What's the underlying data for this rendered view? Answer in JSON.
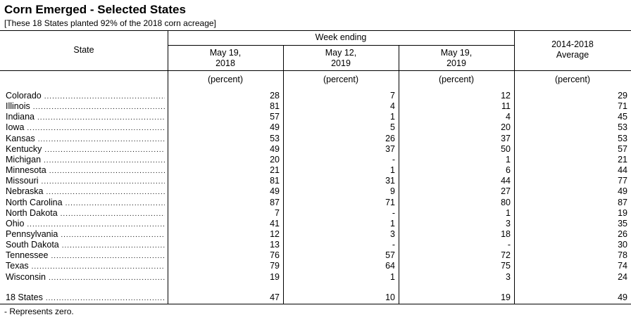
{
  "title": "Corn Emerged - Selected States",
  "subtitle": "[These 18 States planted 92% of the 2018 corn acreage]",
  "table": {
    "state_header": "State",
    "group_header": "Week ending",
    "columns": [
      [
        "May 19,",
        "2018"
      ],
      [
        "May 12,",
        "2019"
      ],
      [
        "May 19,",
        "2019"
      ],
      [
        "2014-2018",
        "Average"
      ]
    ],
    "units": [
      "(percent)",
      "(percent)",
      "(percent)",
      "(percent)"
    ],
    "rows": [
      [
        "Colorado",
        28,
        7,
        12,
        29
      ],
      [
        "Illinois",
        81,
        4,
        11,
        71
      ],
      [
        "Indiana",
        57,
        1,
        4,
        45
      ],
      [
        "Iowa",
        49,
        5,
        20,
        53
      ],
      [
        "Kansas",
        53,
        26,
        37,
        53
      ],
      [
        "Kentucky",
        49,
        37,
        50,
        57
      ],
      [
        "Michigan",
        20,
        "-",
        1,
        21
      ],
      [
        "Minnesota",
        21,
        1,
        6,
        44
      ],
      [
        "Missouri",
        81,
        31,
        44,
        77
      ],
      [
        "Nebraska",
        49,
        9,
        27,
        49
      ],
      [
        "North Carolina",
        87,
        71,
        80,
        87
      ],
      [
        "North Dakota",
        7,
        "-",
        1,
        19
      ],
      [
        "Ohio",
        41,
        1,
        3,
        35
      ],
      [
        "Pennsylvania",
        12,
        3,
        18,
        26
      ],
      [
        "South Dakota",
        13,
        "-",
        "-",
        30
      ],
      [
        "Tennessee",
        76,
        57,
        72,
        78
      ],
      [
        "Texas",
        79,
        64,
        75,
        74
      ],
      [
        "Wisconsin",
        19,
        1,
        3,
        24
      ]
    ],
    "total": [
      "18 States",
      47,
      10,
      19,
      49
    ]
  },
  "footnote": "- Represents zero."
}
